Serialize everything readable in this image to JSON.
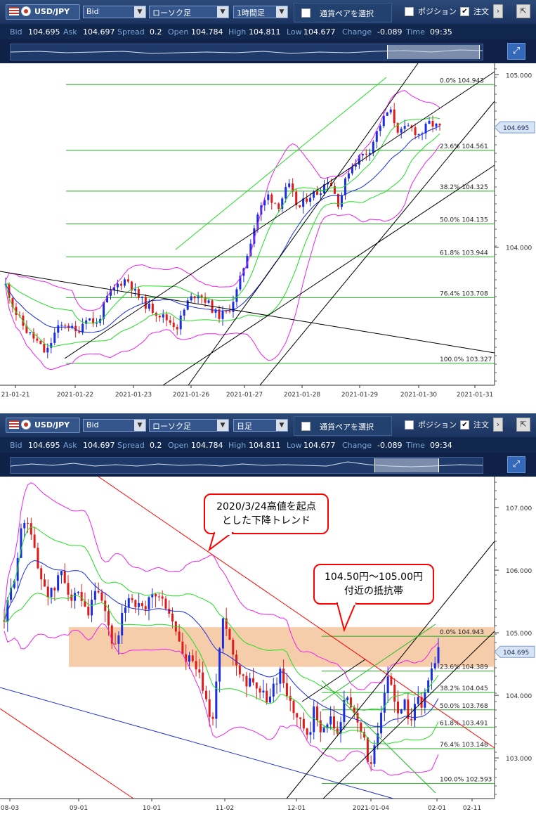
{
  "toolbar": {
    "pair": "USD/JPY",
    "price_type": "Bid",
    "chart_type": "ローソク足",
    "select_pair_label": "通貨ペアを選択",
    "position_label": "ポジション",
    "order_label": "注文",
    "dropdown_arrow": "▼"
  },
  "panels": [
    {
      "timeframe": "1時間足",
      "quote": {
        "bid_label": "Bid",
        "bid": "104.695",
        "ask_label": "Ask",
        "ask": "104.697",
        "spread_label": "Spread",
        "spread": "0.2",
        "open_label": "Open",
        "open": "104.784",
        "high_label": "High",
        "high": "104.811",
        "low_label": "Low",
        "low": "104.677",
        "change_label": "Change",
        "change": "-0.089",
        "time_label": "Time",
        "time": "09:35"
      },
      "price_tag": "104.695"
    },
    {
      "timeframe": "日足",
      "quote": {
        "bid_label": "Bid",
        "bid": "104.695",
        "ask_label": "Ask",
        "ask": "104.697",
        "spread_label": "Spread",
        "spread": "0.2",
        "open_label": "Open",
        "open": "104.784",
        "high_label": "High",
        "high": "104.811",
        "low_label": "Low",
        "low": "104.677",
        "change_label": "Change",
        "change": "-0.089",
        "time_label": "Time",
        "time": "09:34"
      },
      "price_tag": "104.695",
      "callouts": [
        {
          "lines": [
            "2020/3/24高値を起点",
            "とした下降トレンド"
          ]
        },
        {
          "lines": [
            "104.50円～105.00円",
            "付近の抵抗帯"
          ]
        }
      ]
    }
  ],
  "chart_data": [
    {
      "type": "candlestick",
      "timeframe": "1時間足",
      "colors": {
        "up": "#1a2de0",
        "down": "#e01a1a",
        "fib": "#22b022",
        "bollinger": "#ee22ee",
        "bollinger_1sigma": "#22dd22",
        "ma": "#1a2de0",
        "trend": "#000000"
      },
      "x_ticks": [
        "21-01-21",
        "2021-01-22",
        "2021-01-23",
        "2021-01-26",
        "2021-01-27",
        "2021-01-28",
        "2021-01-29",
        "2021-01-30",
        "2021-01-31"
      ],
      "y_ticks": [
        104.0,
        105.0
      ],
      "ylim": [
        103.2,
        105.05
      ],
      "fibonacci": [
        {
          "label": "0.0%",
          "value": 104.943
        },
        {
          "label": "23.6%",
          "value": 104.561
        },
        {
          "label": "38.2%",
          "value": 104.325
        },
        {
          "label": "50.0%",
          "value": 104.135
        },
        {
          "label": "61.8%",
          "value": 103.944
        },
        {
          "label": "76.4%",
          "value": 103.708
        },
        {
          "label": "100.0%",
          "value": 103.327
        }
      ],
      "close_path": [
        103.78,
        103.62,
        103.52,
        103.46,
        103.38,
        103.52,
        103.56,
        103.5,
        103.6,
        103.55,
        103.7,
        103.78,
        103.82,
        103.72,
        103.66,
        103.62,
        103.58,
        103.54,
        103.68,
        103.74,
        103.68,
        103.6,
        103.62,
        103.76,
        103.98,
        104.2,
        104.3,
        104.24,
        104.36,
        104.22,
        104.3,
        104.32,
        104.4,
        104.25,
        104.45,
        104.52,
        104.56,
        104.7,
        104.8,
        104.66,
        104.7,
        104.65,
        104.72,
        104.69
      ]
    },
    {
      "type": "candlestick",
      "timeframe": "日足",
      "colors": {
        "up": "#1a2de0",
        "down": "#e01a1a",
        "fib": "#22b022",
        "bollinger": "#ee22ee",
        "bollinger_1sigma": "#22dd22",
        "ma": "#1a2de0",
        "trend_down": "#ff0000",
        "trend": "#000000",
        "zone": "#f4c49c"
      },
      "x_ticks": [
        "08-03",
        "09-01",
        "10-01",
        "11-02",
        "12-01",
        "2021-01-04",
        "02-01",
        "02-11"
      ],
      "y_ticks": [
        103.0,
        104.0,
        105.0,
        106.0,
        107.0
      ],
      "ylim": [
        102.35,
        107.45
      ],
      "resistance_zone": [
        104.5,
        105.0
      ],
      "fibonacci": [
        {
          "label": "0.0%",
          "value": 104.943
        },
        {
          "label": "23.6%",
          "value": 104.389
        },
        {
          "label": "38.2%",
          "value": 104.045
        },
        {
          "label": "50.0%",
          "value": 103.768
        },
        {
          "label": "61.8%",
          "value": 103.491
        },
        {
          "label": "76.4%",
          "value": 103.148
        },
        {
          "label": "100.0%",
          "value": 102.593
        }
      ],
      "close_path": [
        105.2,
        105.6,
        106.0,
        106.6,
        106.9,
        106.5,
        106.0,
        105.8,
        105.6,
        105.7,
        106.0,
        105.8,
        105.5,
        105.6,
        105.4,
        105.2,
        105.7,
        105.5,
        105.3,
        104.9,
        104.7,
        105.3,
        105.6,
        105.5,
        105.4,
        105.3,
        105.6,
        105.6,
        105.5,
        105.4,
        105.1,
        104.9,
        104.5,
        104.6,
        104.4,
        104.2,
        103.8,
        103.6,
        104.6,
        105.3,
        104.9,
        104.5,
        104.4,
        104.2,
        104.3,
        104.1,
        104.0,
        103.9,
        104.2,
        104.4,
        104.1,
        103.8,
        103.6,
        103.5,
        103.2,
        103.8,
        103.5,
        103.4,
        103.7,
        103.3,
        103.8,
        104.0,
        103.7,
        103.6,
        103.2,
        102.8,
        103.3,
        103.7,
        104.3,
        104.1,
        103.6,
        103.9,
        103.6,
        104.0,
        103.8,
        104.2,
        104.5,
        104.7
      ]
    }
  ]
}
